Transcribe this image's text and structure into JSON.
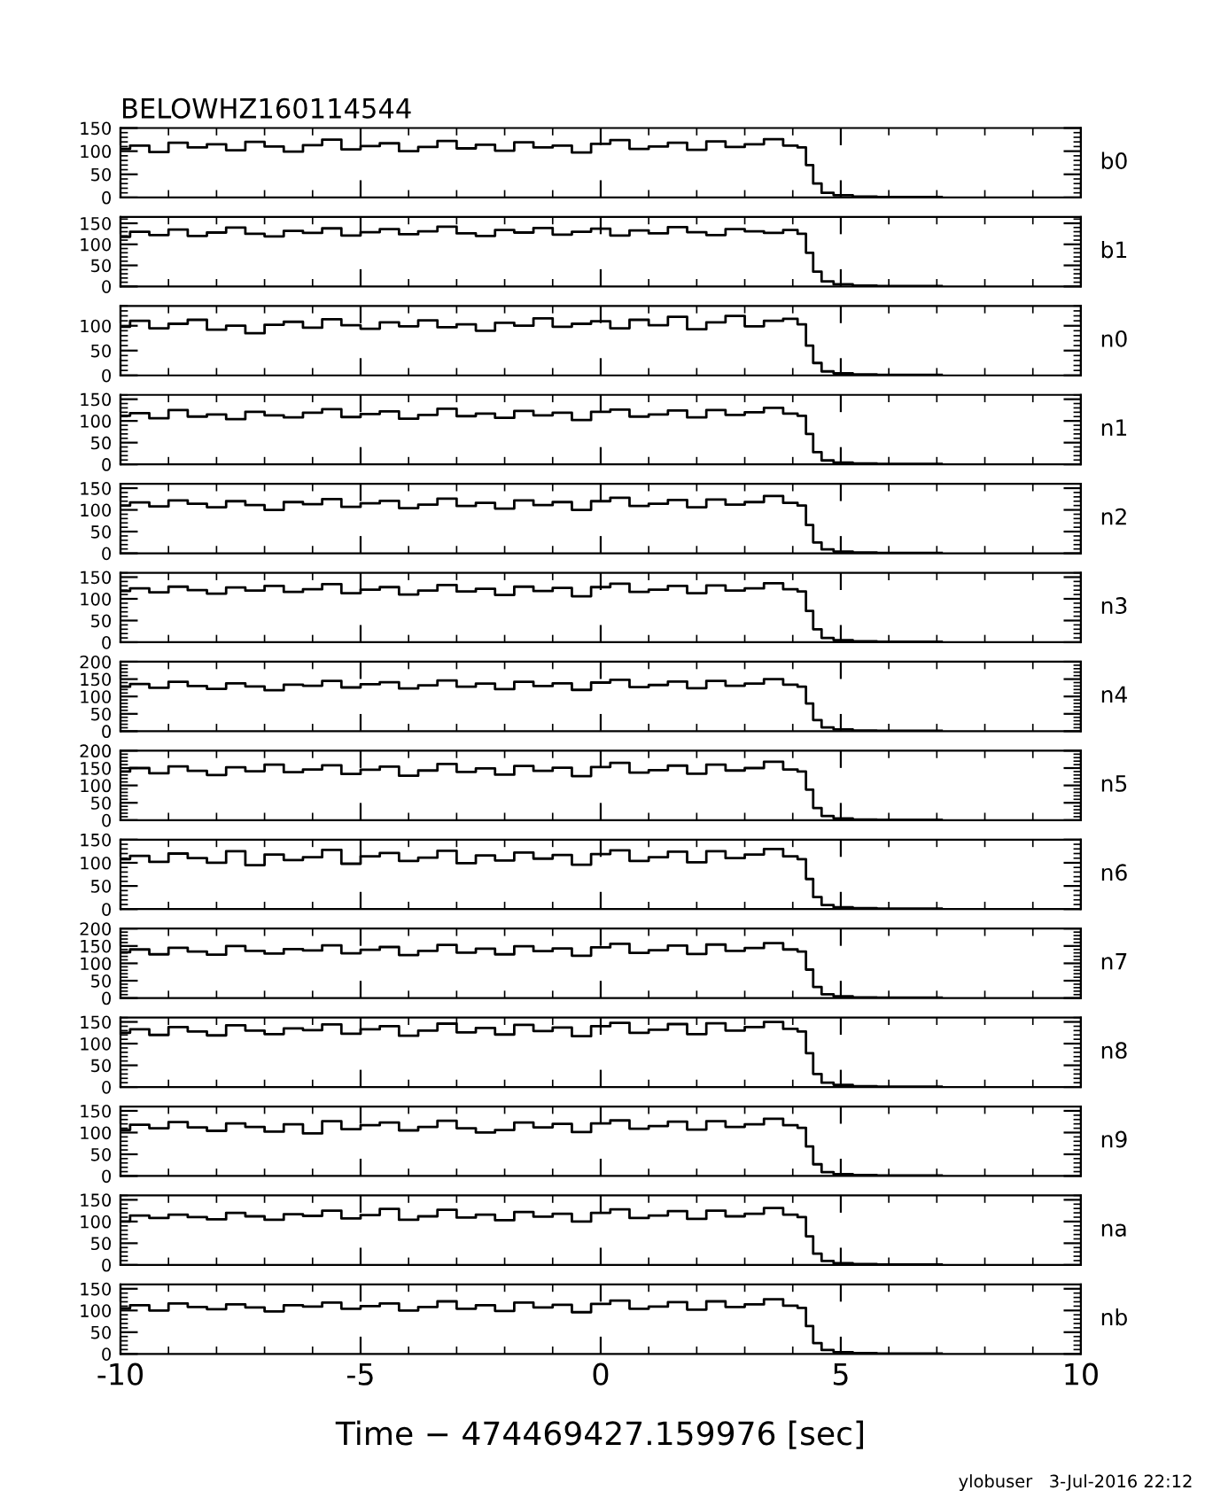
{
  "chart_data": [
    {
      "type": "step",
      "title": "BELOWHZ160114544",
      "annotations": [
        "b0"
      ],
      "tick_labels": "y",
      "xlim": [
        -10,
        10
      ],
      "xticks": [
        -10,
        -5,
        0,
        5,
        10
      ],
      "ylim": [
        0,
        150
      ],
      "yticks": [
        0,
        50,
        100,
        150
      ],
      "x": [
        -10,
        -9.6,
        -9.2,
        -8.8,
        -8.4,
        -8,
        -7.6,
        -7.2,
        -6.8,
        -6.4,
        -6,
        -5.6,
        -5.2,
        -4.8,
        -4.4,
        -4,
        -3.6,
        -3.2,
        -2.8,
        -2.4,
        -2,
        -1.6,
        -1.2,
        -0.8,
        -0.4,
        0,
        0.4,
        0.8,
        1.2,
        1.6,
        2,
        2.4,
        2.8,
        3.2,
        3.6,
        4,
        4.2,
        4.35,
        4.5,
        4.7,
        5,
        5.5,
        6,
        6.5,
        7.1
      ],
      "series": [
        {
          "color": "#000000",
          "values": [
            105,
            112,
            98,
            118,
            108,
            115,
            102,
            120,
            110,
            99,
            113,
            125,
            104,
            111,
            117,
            100,
            109,
            122,
            106,
            114,
            101,
            119,
            108,
            112,
            97,
            116,
            124,
            105,
            110,
            118,
            103,
            121,
            109,
            115,
            126,
            112,
            108,
            70,
            30,
            10,
            5,
            2,
            1,
            1,
            1
          ]
        }
      ]
    },
    {
      "type": "step",
      "annotations": [
        "b1"
      ],
      "tick_labels": "y",
      "xlim": [
        -10,
        10
      ],
      "xticks": [
        -10,
        -5,
        0,
        5,
        10
      ],
      "ylim": [
        0,
        165
      ],
      "yticks": [
        0,
        50,
        100,
        150
      ],
      "x": [
        -10,
        -9.6,
        -9.2,
        -8.8,
        -8.4,
        -8,
        -7.6,
        -7.2,
        -6.8,
        -6.4,
        -6,
        -5.6,
        -5.2,
        -4.8,
        -4.4,
        -4,
        -3.6,
        -3.2,
        -2.8,
        -2.4,
        -2,
        -1.6,
        -1.2,
        -0.8,
        -0.4,
        0,
        0.4,
        0.8,
        1.2,
        1.6,
        2,
        2.4,
        2.8,
        3.2,
        3.6,
        4,
        4.2,
        4.35,
        4.5,
        4.7,
        5,
        5.5,
        6,
        6.5,
        7.1
      ],
      "series": [
        {
          "color": "#000000",
          "values": [
            118,
            130,
            122,
            135,
            120,
            128,
            140,
            125,
            119,
            132,
            127,
            138,
            121,
            129,
            136,
            124,
            131,
            142,
            126,
            120,
            134,
            128,
            139,
            123,
            130,
            137,
            121,
            133,
            126,
            141,
            129,
            122,
            136,
            131,
            127,
            134,
            125,
            80,
            35,
            12,
            5,
            2,
            1,
            1,
            1
          ]
        }
      ]
    },
    {
      "type": "step",
      "annotations": [
        "n0"
      ],
      "tick_labels": "y",
      "xlim": [
        -10,
        10
      ],
      "xticks": [
        -10,
        -5,
        0,
        5,
        10
      ],
      "ylim": [
        0,
        140
      ],
      "yticks": [
        0,
        50,
        100
      ],
      "x": [
        -10,
        -9.6,
        -9.2,
        -8.8,
        -8.4,
        -8,
        -7.6,
        -7.2,
        -6.8,
        -6.4,
        -6,
        -5.6,
        -5.2,
        -4.8,
        -4.4,
        -4,
        -3.6,
        -3.2,
        -2.8,
        -2.4,
        -2,
        -1.6,
        -1.2,
        -0.8,
        -0.4,
        0,
        0.4,
        0.8,
        1.2,
        1.6,
        2,
        2.4,
        2.8,
        3.2,
        3.6,
        4,
        4.2,
        4.35,
        4.5,
        4.7,
        5,
        5.5,
        6,
        6.5,
        7.1
      ],
      "series": [
        {
          "color": "#000000",
          "values": [
            98,
            110,
            95,
            104,
            112,
            92,
            100,
            85,
            102,
            108,
            96,
            113,
            101,
            94,
            107,
            99,
            111,
            97,
            103,
            90,
            106,
            100,
            115,
            98,
            104,
            109,
            95,
            112,
            101,
            118,
            93,
            107,
            120,
            99,
            110,
            114,
            103,
            60,
            25,
            8,
            4,
            2,
            1,
            1,
            1
          ]
        }
      ]
    },
    {
      "type": "step",
      "annotations": [
        "n1"
      ],
      "tick_labels": "y",
      "xlim": [
        -10,
        10
      ],
      "xticks": [
        -10,
        -5,
        0,
        5,
        10
      ],
      "ylim": [
        0,
        160
      ],
      "yticks": [
        0,
        50,
        100,
        150
      ],
      "x": [
        -10,
        -9.6,
        -9.2,
        -8.8,
        -8.4,
        -8,
        -7.6,
        -7.2,
        -6.8,
        -6.4,
        -6,
        -5.6,
        -5.2,
        -4.8,
        -4.4,
        -4,
        -3.6,
        -3.2,
        -2.8,
        -2.4,
        -2,
        -1.6,
        -1.2,
        -0.8,
        -0.4,
        0,
        0.4,
        0.8,
        1.2,
        1.6,
        2,
        2.4,
        2.8,
        3.2,
        3.6,
        4,
        4.2,
        4.35,
        4.5,
        4.7,
        5,
        5.5,
        6,
        6.5,
        7.1
      ],
      "series": [
        {
          "color": "#000000",
          "values": [
            112,
            118,
            106,
            125,
            110,
            115,
            104,
            121,
            113,
            108,
            119,
            127,
            109,
            116,
            122,
            105,
            114,
            128,
            111,
            117,
            107,
            123,
            113,
            119,
            102,
            121,
            126,
            110,
            115,
            124,
            108,
            125,
            114,
            120,
            130,
            117,
            112,
            70,
            28,
            9,
            4,
            2,
            1,
            1,
            1
          ]
        }
      ]
    },
    {
      "type": "step",
      "annotations": [
        "n2"
      ],
      "tick_labels": "y",
      "xlim": [
        -10,
        10
      ],
      "xticks": [
        -10,
        -5,
        0,
        5,
        10
      ],
      "ylim": [
        0,
        160
      ],
      "yticks": [
        0,
        50,
        100,
        150
      ],
      "x": [
        -10,
        -9.6,
        -9.2,
        -8.8,
        -8.4,
        -8,
        -7.6,
        -7.2,
        -6.8,
        -6.4,
        -6,
        -5.6,
        -5.2,
        -4.8,
        -4.4,
        -4,
        -3.6,
        -3.2,
        -2.8,
        -2.4,
        -2,
        -1.6,
        -1.2,
        -0.8,
        -0.4,
        0,
        0.4,
        0.8,
        1.2,
        1.6,
        2,
        2.4,
        2.8,
        3.2,
        3.6,
        4,
        4.2,
        4.35,
        4.5,
        4.7,
        5,
        5.5,
        6,
        6.5,
        7.1
      ],
      "series": [
        {
          "color": "#000000",
          "values": [
            110,
            117,
            108,
            122,
            114,
            106,
            120,
            111,
            100,
            118,
            113,
            125,
            107,
            115,
            121,
            104,
            112,
            126,
            109,
            116,
            103,
            122,
            111,
            118,
            100,
            120,
            128,
            109,
            114,
            123,
            106,
            124,
            112,
            118,
            132,
            116,
            110,
            65,
            25,
            9,
            4,
            2,
            1,
            1,
            1
          ]
        }
      ]
    },
    {
      "type": "step",
      "annotations": [
        "n3"
      ],
      "tick_labels": "y",
      "xlim": [
        -10,
        10
      ],
      "xticks": [
        -10,
        -5,
        0,
        5,
        10
      ],
      "ylim": [
        0,
        160
      ],
      "yticks": [
        0,
        50,
        100,
        150
      ],
      "x": [
        -10,
        -9.6,
        -9.2,
        -8.8,
        -8.4,
        -8,
        -7.6,
        -7.2,
        -6.8,
        -6.4,
        -6,
        -5.6,
        -5.2,
        -4.8,
        -4.4,
        -4,
        -3.6,
        -3.2,
        -2.8,
        -2.4,
        -2,
        -1.6,
        -1.2,
        -0.8,
        -0.4,
        0,
        0.4,
        0.8,
        1.2,
        1.6,
        2,
        2.4,
        2.8,
        3.2,
        3.6,
        4,
        4.2,
        4.35,
        4.5,
        4.7,
        5,
        5.5,
        6,
        6.5,
        7.1
      ],
      "series": [
        {
          "color": "#000000",
          "values": [
            118,
            124,
            115,
            128,
            120,
            112,
            126,
            119,
            130,
            116,
            122,
            134,
            113,
            121,
            127,
            110,
            119,
            132,
            117,
            123,
            109,
            128,
            118,
            125,
            106,
            127,
            135,
            116,
            121,
            130,
            113,
            131,
            119,
            124,
            136,
            122,
            117,
            72,
            30,
            10,
            5,
            2,
            1,
            1,
            1
          ]
        }
      ]
    },
    {
      "type": "step",
      "annotations": [
        "n4"
      ],
      "tick_labels": "y",
      "xlim": [
        -10,
        10
      ],
      "xticks": [
        -10,
        -5,
        0,
        5,
        10
      ],
      "ylim": [
        0,
        200
      ],
      "yticks": [
        0,
        50,
        100,
        150,
        200
      ],
      "x": [
        -10,
        -9.6,
        -9.2,
        -8.8,
        -8.4,
        -8,
        -7.6,
        -7.2,
        -6.8,
        -6.4,
        -6,
        -5.6,
        -5.2,
        -4.8,
        -4.4,
        -4,
        -3.6,
        -3.2,
        -2.8,
        -2.4,
        -2,
        -1.6,
        -1.2,
        -0.8,
        -0.4,
        0,
        0.4,
        0.8,
        1.2,
        1.6,
        2,
        2.4,
        2.8,
        3.2,
        3.6,
        4,
        4.2,
        4.35,
        4.5,
        4.7,
        5,
        5.5,
        6,
        6.5,
        7.1
      ],
      "series": [
        {
          "color": "#000000",
          "values": [
            128,
            136,
            125,
            142,
            130,
            122,
            138,
            129,
            118,
            134,
            131,
            145,
            126,
            135,
            141,
            123,
            132,
            146,
            128,
            137,
            121,
            142,
            130,
            138,
            119,
            140,
            148,
            127,
            133,
            143,
            124,
            145,
            131,
            137,
            150,
            134,
            128,
            80,
            32,
            11,
            5,
            2,
            1,
            1,
            1
          ]
        }
      ]
    },
    {
      "type": "step",
      "annotations": [
        "n5"
      ],
      "tick_labels": "y",
      "xlim": [
        -10,
        10
      ],
      "xticks": [
        -10,
        -5,
        0,
        5,
        10
      ],
      "ylim": [
        0,
        200
      ],
      "yticks": [
        0,
        50,
        100,
        150,
        200
      ],
      "x": [
        -10,
        -9.6,
        -9.2,
        -8.8,
        -8.4,
        -8,
        -7.6,
        -7.2,
        -6.8,
        -6.4,
        -6,
        -5.6,
        -5.2,
        -4.8,
        -4.4,
        -4,
        -3.6,
        -3.2,
        -2.8,
        -2.4,
        -2,
        -1.6,
        -1.2,
        -0.8,
        -0.4,
        0,
        0.4,
        0.8,
        1.2,
        1.6,
        2,
        2.4,
        2.8,
        3.2,
        3.6,
        4,
        4.2,
        4.35,
        4.5,
        4.7,
        5,
        5.5,
        6,
        6.5,
        7.1
      ],
      "series": [
        {
          "color": "#000000",
          "values": [
            140,
            150,
            135,
            155,
            142,
            130,
            152,
            141,
            160,
            138,
            146,
            158,
            133,
            145,
            154,
            128,
            143,
            162,
            139,
            149,
            131,
            156,
            142,
            151,
            127,
            153,
            165,
            137,
            144,
            157,
            134,
            160,
            143,
            150,
            168,
            146,
            140,
            88,
            35,
            12,
            5,
            2,
            1,
            1,
            1
          ]
        }
      ]
    },
    {
      "type": "step",
      "annotations": [
        "n6"
      ],
      "tick_labels": "y",
      "xlim": [
        -10,
        10
      ],
      "xticks": [
        -10,
        -5,
        0,
        5,
        10
      ],
      "ylim": [
        0,
        150
      ],
      "yticks": [
        0,
        50,
        100,
        150
      ],
      "x": [
        -10,
        -9.6,
        -9.2,
        -8.8,
        -8.4,
        -8,
        -7.6,
        -7.2,
        -6.8,
        -6.4,
        -6,
        -5.6,
        -5.2,
        -4.8,
        -4.4,
        -4,
        -3.6,
        -3.2,
        -2.8,
        -2.4,
        -2,
        -1.6,
        -1.2,
        -0.8,
        -0.4,
        0,
        0.4,
        0.8,
        1.2,
        1.6,
        2,
        2.4,
        2.8,
        3.2,
        3.6,
        4,
        4.2,
        4.35,
        4.5,
        4.7,
        5,
        5.5,
        6,
        6.5,
        7.1
      ],
      "series": [
        {
          "color": "#000000",
          "values": [
            108,
            115,
            102,
            120,
            110,
            100,
            125,
            95,
            118,
            106,
            112,
            128,
            98,
            114,
            121,
            104,
            111,
            126,
            99,
            116,
            105,
            122,
            109,
            117,
            96,
            119,
            127,
            104,
            112,
            124,
            101,
            125,
            110,
            118,
            130,
            114,
            108,
            65,
            26,
            9,
            4,
            2,
            1,
            1,
            1
          ]
        }
      ]
    },
    {
      "type": "step",
      "annotations": [
        "n7"
      ],
      "tick_labels": "y",
      "xlim": [
        -10,
        10
      ],
      "xticks": [
        -10,
        -5,
        0,
        5,
        10
      ],
      "ylim": [
        0,
        200
      ],
      "yticks": [
        0,
        50,
        100,
        150,
        200
      ],
      "x": [
        -10,
        -9.6,
        -9.2,
        -8.8,
        -8.4,
        -8,
        -7.6,
        -7.2,
        -6.8,
        -6.4,
        -6,
        -5.6,
        -5.2,
        -4.8,
        -4.4,
        -4,
        -3.6,
        -3.2,
        -2.8,
        -2.4,
        -2,
        -1.6,
        -1.2,
        -0.8,
        -0.4,
        0,
        0.4,
        0.8,
        1.2,
        1.6,
        2,
        2.4,
        2.8,
        3.2,
        3.6,
        4,
        4.2,
        4.35,
        4.5,
        4.7,
        5,
        5.5,
        6,
        6.5,
        7.1
      ],
      "series": [
        {
          "color": "#000000",
          "values": [
            132,
            140,
            126,
            145,
            134,
            125,
            150,
            136,
            128,
            141,
            137,
            152,
            129,
            139,
            147,
            124,
            136,
            153,
            131,
            142,
            126,
            149,
            135,
            143,
            122,
            146,
            156,
            130,
            138,
            151,
            127,
            154,
            136,
            144,
            158,
            140,
            134,
            82,
            32,
            11,
            5,
            2,
            1,
            1,
            1
          ]
        }
      ]
    },
    {
      "type": "step",
      "annotations": [
        "n8"
      ],
      "tick_labels": "y",
      "xlim": [
        -10,
        10
      ],
      "xticks": [
        -10,
        -5,
        0,
        5,
        10
      ],
      "ylim": [
        0,
        160
      ],
      "yticks": [
        0,
        50,
        100,
        150
      ],
      "x": [
        -10,
        -9.6,
        -9.2,
        -8.8,
        -8.4,
        -8,
        -7.6,
        -7.2,
        -6.8,
        -6.4,
        -6,
        -5.6,
        -5.2,
        -4.8,
        -4.4,
        -4,
        -3.6,
        -3.2,
        -2.8,
        -2.4,
        -2,
        -1.6,
        -1.2,
        -0.8,
        -0.4,
        0,
        0.4,
        0.8,
        1.2,
        1.6,
        2,
        2.4,
        2.8,
        3.2,
        3.6,
        4,
        4.2,
        4.35,
        4.5,
        4.7,
        5,
        5.5,
        6,
        6.5,
        7.1
      ],
      "series": [
        {
          "color": "#000000",
          "values": [
            125,
            133,
            120,
            138,
            128,
            119,
            142,
            130,
            122,
            135,
            131,
            144,
            123,
            133,
            140,
            118,
            130,
            146,
            126,
            136,
            121,
            143,
            129,
            137,
            117,
            140,
            148,
            125,
            132,
            145,
            122,
            147,
            130,
            138,
            150,
            134,
            128,
            78,
            30,
            10,
            5,
            2,
            1,
            1,
            1
          ]
        }
      ]
    },
    {
      "type": "step",
      "annotations": [
        "n9"
      ],
      "tick_labels": "y",
      "xlim": [
        -10,
        10
      ],
      "xticks": [
        -10,
        -5,
        0,
        5,
        10
      ],
      "ylim": [
        0,
        160
      ],
      "yticks": [
        0,
        50,
        100,
        150
      ],
      "x": [
        -10,
        -9.6,
        -9.2,
        -8.8,
        -8.4,
        -8,
        -7.6,
        -7.2,
        -6.8,
        -6.4,
        -6,
        -5.6,
        -5.2,
        -4.8,
        -4.4,
        -4,
        -3.6,
        -3.2,
        -2.8,
        -2.4,
        -2,
        -1.6,
        -1.2,
        -0.8,
        -0.4,
        0,
        0.4,
        0.8,
        1.2,
        1.6,
        2,
        2.4,
        2.8,
        3.2,
        3.6,
        4,
        4.2,
        4.35,
        4.5,
        4.7,
        5,
        5.5,
        6,
        6.5,
        7.1
      ],
      "series": [
        {
          "color": "#000000",
          "values": [
            106,
            118,
            110,
            124,
            112,
            104,
            121,
            113,
            102,
            119,
            98,
            126,
            108,
            117,
            123,
            105,
            113,
            127,
            110,
            100,
            106,
            123,
            112,
            120,
            101,
            121,
            128,
            109,
            115,
            125,
            107,
            126,
            113,
            119,
            132,
            117,
            111,
            68,
            27,
            9,
            4,
            2,
            1,
            1,
            1
          ]
        }
      ]
    },
    {
      "type": "step",
      "annotations": [
        "na"
      ],
      "tick_labels": "y",
      "xlim": [
        -10,
        10
      ],
      "xticks": [
        -10,
        -5,
        0,
        5,
        10
      ],
      "ylim": [
        0,
        160
      ],
      "yticks": [
        0,
        50,
        100,
        150
      ],
      "x": [
        -10,
        -9.6,
        -9.2,
        -8.8,
        -8.4,
        -8,
        -7.6,
        -7.2,
        -6.8,
        -6.4,
        -6,
        -5.6,
        -5.2,
        -4.8,
        -4.4,
        -4,
        -3.6,
        -3.2,
        -2.8,
        -2.4,
        -2,
        -1.6,
        -1.2,
        -0.8,
        -0.4,
        0,
        0.4,
        0.8,
        1.2,
        1.6,
        2,
        2.4,
        2.8,
        3.2,
        3.6,
        4,
        4.2,
        4.35,
        4.5,
        4.7,
        5,
        5.5,
        6,
        6.5,
        7.1
      ],
      "series": [
        {
          "color": "#000000",
          "values": [
            100,
            114,
            108,
            116,
            110,
            105,
            120,
            112,
            104,
            117,
            113,
            125,
            107,
            115,
            129,
            104,
            112,
            127,
            109,
            116,
            103,
            122,
            111,
            118,
            100,
            120,
            128,
            108,
            114,
            124,
            106,
            125,
            112,
            118,
            131,
            116,
            110,
            66,
            26,
            9,
            4,
            2,
            1,
            1,
            1
          ]
        }
      ]
    },
    {
      "type": "step",
      "xlabel": "Time − 474469427.159976 [sec]",
      "annotations": [
        "nb",
        "ylobuser   3-Jul-2016 22:12"
      ],
      "xlim": [
        -10,
        10
      ],
      "xticks": [
        -10,
        -5,
        0,
        5,
        10
      ],
      "ylim": [
        0,
        160
      ],
      "yticks": [
        0,
        50,
        100,
        150
      ],
      "x": [
        -10,
        -9.6,
        -9.2,
        -8.8,
        -8.4,
        -8,
        -7.6,
        -7.2,
        -6.8,
        -6.4,
        -6,
        -5.6,
        -5.2,
        -4.8,
        -4.4,
        -4,
        -3.6,
        -3.2,
        -2.8,
        -2.4,
        -2,
        -1.6,
        -1.2,
        -0.8,
        -0.4,
        0,
        0.4,
        0.8,
        1.2,
        1.6,
        2,
        2.4,
        2.8,
        3.2,
        3.6,
        4,
        4.2,
        4.35,
        4.5,
        4.7,
        5,
        5.5,
        6,
        6.5,
        7.1
      ],
      "series": [
        {
          "color": "#000000",
          "values": [
            105,
            112,
            100,
            116,
            108,
            103,
            114,
            107,
            98,
            112,
            109,
            118,
            104,
            110,
            116,
            100,
            108,
            121,
            104,
            112,
            99,
            118,
            107,
            113,
            96,
            115,
            123,
            104,
            109,
            119,
            102,
            121,
            108,
            114,
            126,
            111,
            106,
            64,
            25,
            9,
            4,
            2,
            1,
            1,
            1
          ]
        }
      ]
    }
  ]
}
